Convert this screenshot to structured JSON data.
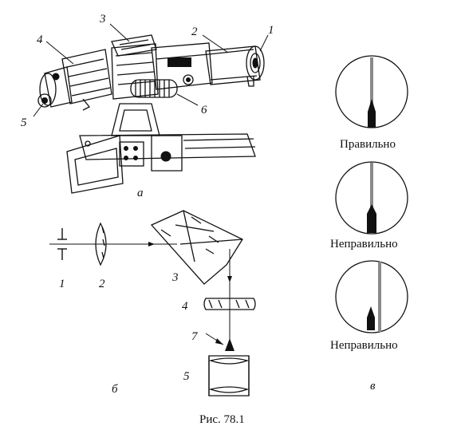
{
  "labels": {
    "part_1": "1",
    "part_2": "2",
    "part_3": "3",
    "part_4": "4",
    "part_5": "5",
    "part_6": "6",
    "part_7": "7"
  },
  "panels": {
    "a": "а",
    "b": "б",
    "v": "в"
  },
  "states": {
    "correct": "Правильно",
    "incorrect_1": "Неправильно",
    "incorrect_2": "Неправильно"
  },
  "caption": "Рис. 78.1",
  "colors": {
    "ink": "#111111",
    "hairline": "#8a8a8a",
    "paper": "#ffffff"
  }
}
